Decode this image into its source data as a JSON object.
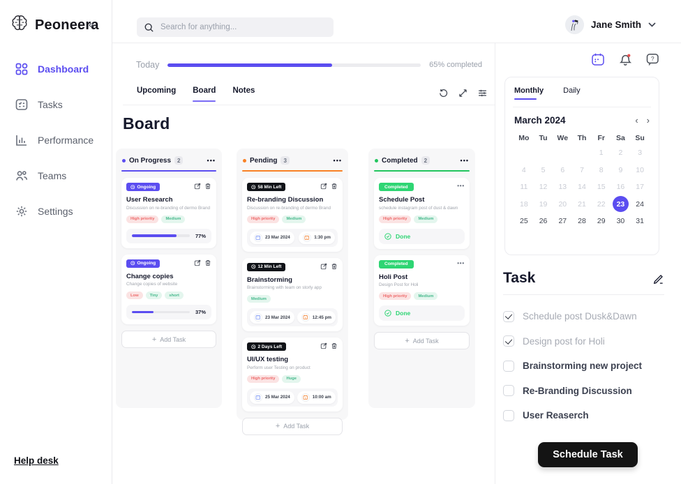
{
  "palette": {
    "accent_purple": "#5b4df0",
    "pending_orange": "#f98125",
    "completed_green": "#22c55e",
    "completed_badge_green": "#2ed573",
    "tag_red_bg": "#fbe3e3",
    "tag_red_text": "#ee6a6a",
    "tag_green_bg": "#e4f6ee",
    "tag_green_text": "#46b98c",
    "black_badge": "#101318",
    "notification_dot": "#e8504f"
  },
  "glyphs": {
    "collapse": "«",
    "dots": "•••",
    "prev": "‹",
    "next": "›",
    "plus": "+"
  },
  "icons": {
    "logo": "brain-icon",
    "search": "magnifier-icon",
    "nav": [
      "grid-icon",
      "checklist-icon",
      "bar-chart-icon",
      "people-icon",
      "gear-icon"
    ],
    "toolbar": [
      "history-icon",
      "expand-icon",
      "sliders-icon"
    ],
    "quick": [
      "calendar-icon",
      "bell-icon",
      "chat-help-icon"
    ],
    "card": [
      "clock-icon",
      "edit-icon",
      "trash-icon"
    ],
    "task": "pencil-icon"
  },
  "sidebar": {
    "logo_text": "Peoneera",
    "items": [
      {
        "label": "Dashboard",
        "active": true
      },
      {
        "label": "Tasks",
        "active": false
      },
      {
        "label": "Performance",
        "active": false
      },
      {
        "label": "Teams",
        "active": false
      },
      {
        "label": "Settings",
        "active": false
      }
    ],
    "help_link": "Help desk"
  },
  "header": {
    "search_placeholder": "Search for anything...",
    "user_name": "Jane Smith"
  },
  "main": {
    "today_label": "Today",
    "progress_percent": 65,
    "progress_label": "65% completed",
    "tabs": [
      {
        "label": "Upcoming",
        "active": false
      },
      {
        "label": "Board",
        "active": true
      },
      {
        "label": "Notes",
        "active": false
      }
    ],
    "board_title": "Board"
  },
  "columns": [
    {
      "name": "On Progress",
      "count": "2",
      "color": "#5b4df0",
      "add_task_label": "Add Task",
      "cards": [
        {
          "badge": "Ongoing",
          "title": "User Research",
          "subtitle": "Discussion on re-branding of dermo Brand",
          "tags": [
            {
              "label": "High priority",
              "type": "red"
            },
            {
              "label": "Medium",
              "type": "green"
            }
          ],
          "progress_percent": 77,
          "progress_label": "77%"
        },
        {
          "badge": "Ongoing",
          "title": "Change copies",
          "subtitle": "Change copies of website",
          "tags": [
            {
              "label": "Low",
              "type": "red"
            },
            {
              "label": "Tiny",
              "type": "green"
            },
            {
              "label": "short",
              "type": "green"
            }
          ],
          "progress_percent": 37,
          "progress_label": "37%"
        }
      ]
    },
    {
      "name": "Pending",
      "count": "3",
      "color": "#f98125",
      "add_task_label": "Add Task",
      "cards": [
        {
          "badge": "58 Min Left",
          "title": "Re-branding Discussion",
          "subtitle": "Discussion on re-branding of dermo Brand",
          "tags": [
            {
              "label": "High priority",
              "type": "red"
            },
            {
              "label": "Medium",
              "type": "green"
            }
          ],
          "date": "23 Mar 2024",
          "time": "1:30 pm"
        },
        {
          "badge": "12 Min Left",
          "title": "Brainstorming",
          "subtitle": "Brainstorming with team on storly app",
          "tags": [
            {
              "label": "Medium",
              "type": "green"
            }
          ],
          "date": "23 Mar 2024",
          "time": "12:45 pm"
        },
        {
          "badge": "2 Days Left",
          "title": "UI/UX testing",
          "subtitle": "Perform user Testing on product",
          "tags": [
            {
              "label": "High priority",
              "type": "red"
            },
            {
              "label": "Huge",
              "type": "green"
            }
          ],
          "date": "25 Mar 2024",
          "time": "10:00 am"
        }
      ]
    },
    {
      "name": "Completed",
      "count": "2",
      "color": "#22c55e",
      "add_task_label": "Add Task",
      "cards": [
        {
          "badge": "Completed",
          "title": "Schedule Post",
          "subtitle": "schedule instagram post of dust & dawn",
          "tags": [
            {
              "label": "High priority",
              "type": "red"
            },
            {
              "label": "Medium",
              "type": "green"
            }
          ],
          "done_label": "Done"
        },
        {
          "badge": "Completed",
          "title": "Holi Post",
          "subtitle": "Design Post for Holi",
          "tags": [
            {
              "label": "High priority",
              "type": "red"
            },
            {
              "label": "Medium",
              "type": "green"
            }
          ],
          "done_label": "Done"
        }
      ]
    }
  ],
  "right_panel": {
    "calendar": {
      "tabs": [
        {
          "label": "Monthly",
          "active": true
        },
        {
          "label": "Daily",
          "active": false
        }
      ],
      "month_title": "March 2024",
      "weekdays": [
        "Mo",
        "Tu",
        "We",
        "Th",
        "Fr",
        "Sa",
        "Su"
      ],
      "weeks": [
        [
          "",
          "",
          "",
          "",
          "1",
          "2",
          "3"
        ],
        [
          "4",
          "5",
          "6",
          "7",
          "8",
          "9",
          "10"
        ],
        [
          "11",
          "12",
          "13",
          "14",
          "15",
          "16",
          "17"
        ],
        [
          "18",
          "19",
          "20",
          "21",
          "22",
          "23",
          "24"
        ],
        [
          "25",
          "26",
          "27",
          "28",
          "29",
          "30",
          "31"
        ]
      ],
      "selected_day": "23",
      "muted_through": 22
    },
    "task": {
      "title": "Task",
      "items": [
        {
          "label": "Schedule post Dusk&Dawn",
          "checked": true
        },
        {
          "label": "Design post for Holi",
          "checked": true
        },
        {
          "label": "Brainstorming new project",
          "checked": false
        },
        {
          "label": "Re-Branding Discussion",
          "checked": false
        },
        {
          "label": "User Reaserch",
          "checked": false
        }
      ]
    },
    "schedule_button_label": "Schedule Task"
  }
}
